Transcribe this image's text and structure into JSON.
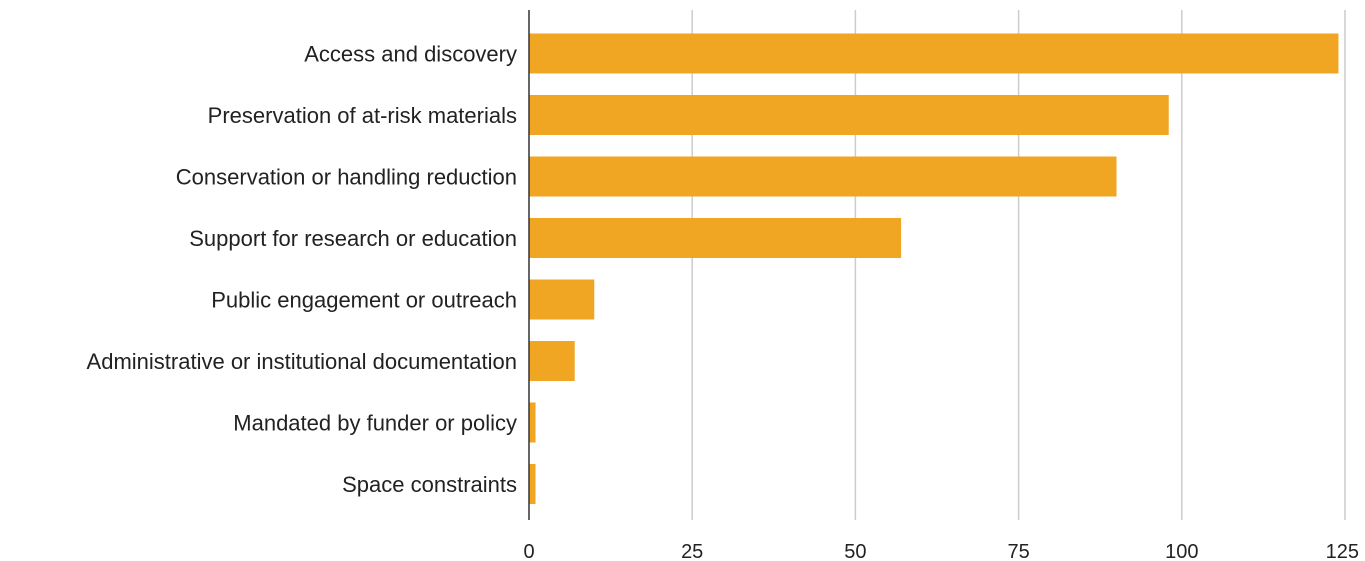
{
  "chart_data": {
    "type": "bar",
    "orientation": "horizontal",
    "categories": [
      "Access and discovery",
      "Preservation of at-risk materials",
      "Conservation or handling reduction",
      "Support for research or education",
      "Public engagement or outreach",
      "Administrative or institutional documentation",
      "Mandated by funder or policy",
      "Space constraints"
    ],
    "values": [
      124,
      98,
      90,
      57,
      10,
      7,
      1,
      1
    ],
    "xlim": [
      0,
      125
    ],
    "x_ticks": [
      0,
      25,
      50,
      75,
      100,
      125
    ],
    "title": "",
    "xlabel": "",
    "ylabel": "",
    "grid": true,
    "legend": "none",
    "bar_color": "#f0a523"
  }
}
